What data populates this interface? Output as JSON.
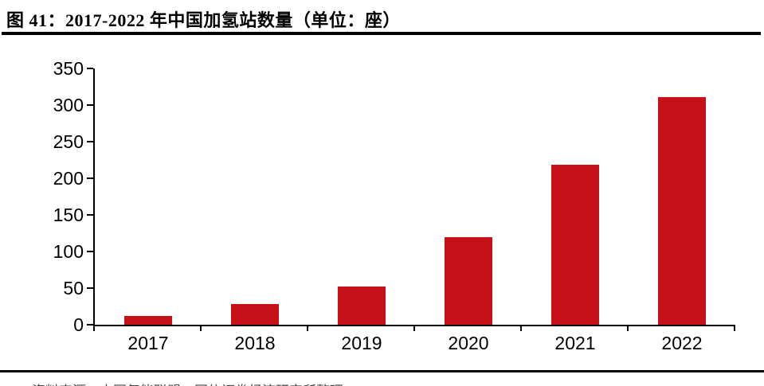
{
  "header": {
    "title": "图 41：2017-2022 年中国加氢站数量（单位：座）"
  },
  "chart_data": {
    "type": "bar",
    "title": "2017-2022 年中国加氢站数量",
    "unit_label": "单位：座",
    "categories": [
      "2017",
      "2018",
      "2019",
      "2020",
      "2021",
      "2022"
    ],
    "values": [
      12,
      28,
      52,
      120,
      219,
      311
    ],
    "xlabel": "",
    "ylabel": "",
    "ylim": [
      0,
      350
    ],
    "yticks": [
      0,
      50,
      100,
      150,
      200,
      250,
      300,
      350
    ],
    "bar_color": "#C61119",
    "axis_color": "#000000",
    "grid": false,
    "legend_position": "none"
  },
  "footer": {
    "source_text": "资料来源：中国氢能联盟，国信证券经济研究所整理"
  }
}
